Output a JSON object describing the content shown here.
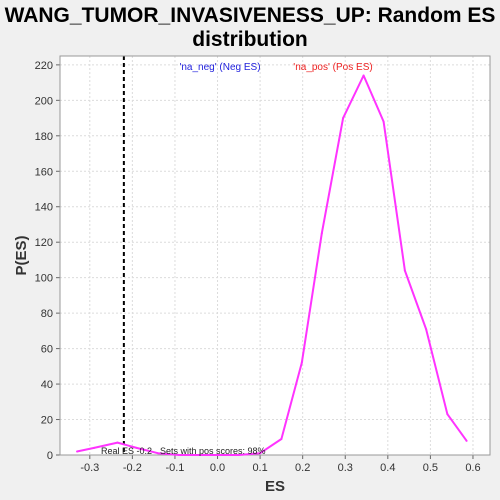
{
  "chart_data": {
    "type": "line",
    "title_line1": "WANG_TUMOR_INVASIVENESS_UP: Random ES",
    "title_line2": "distribution",
    "xlabel": "ES",
    "ylabel": "P(ES)",
    "xlim": [
      -0.37,
      0.64
    ],
    "ylim": [
      0,
      225
    ],
    "x_ticks": [
      -0.3,
      -0.2,
      -0.1,
      0.0,
      0.1,
      0.2,
      0.3,
      0.4,
      0.5,
      0.6
    ],
    "x_tick_labels": [
      "-0.3",
      "-0.2",
      "-0.1",
      "0.0",
      "0.1",
      "0.2",
      "0.3",
      "0.4",
      "0.5",
      "0.6"
    ],
    "y_ticks": [
      0,
      20,
      40,
      60,
      80,
      100,
      120,
      140,
      160,
      180,
      200,
      220
    ],
    "y_tick_labels": [
      "0",
      "20",
      "40",
      "60",
      "80",
      "100",
      "120",
      "140",
      "160",
      "180",
      "200",
      "220"
    ],
    "grid": true,
    "series": [
      {
        "color": "#ff33ff",
        "x": [
          -0.33,
          -0.29,
          -0.235,
          -0.19,
          -0.14,
          -0.09,
          -0.045,
          0.0,
          0.05,
          0.1,
          0.15,
          0.198,
          0.245,
          0.295,
          0.343,
          0.39,
          0.44,
          0.49,
          0.54,
          0.585
        ],
        "y": [
          2,
          4,
          7,
          4,
          1,
          0,
          0,
          0,
          0,
          1,
          9,
          52,
          125,
          190,
          214,
          188,
          104,
          71,
          23,
          8
        ]
      }
    ],
    "real_es_line": {
      "x": -0.22,
      "color": "#000000",
      "style": "dashed"
    },
    "annotations": {
      "neg_label": "'na_neg' (Neg ES)",
      "pos_label": "'na_pos' (Pos ES)",
      "real_es_text": "Real ES -0.2",
      "sets_pos_text": "Sets with pos scores: 98%"
    },
    "colors": {
      "neg_label": "#2222dd",
      "pos_label": "#ee2222",
      "plot_background": "#ffffff",
      "page_background": "#f0f0f0"
    }
  }
}
